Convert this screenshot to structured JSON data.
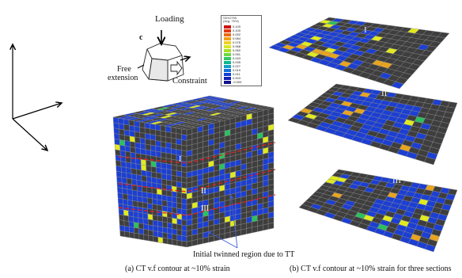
{
  "figure": {
    "diagram_labels": {
      "loading": "Loading",
      "c_axis": "c",
      "free_extension_line1": "Free",
      "free_extension_line2": "extension",
      "constraint": "Constraint"
    },
    "legend": {
      "title_line1": "SDV2759",
      "title_line2": "(Avg: 75%)",
      "values": [
        "0.109",
        "0.100",
        "0.092",
        "0.084",
        "0.076",
        "0.068",
        "0.060",
        "0.051",
        "0.043",
        "0.035",
        "0.027",
        "0.019",
        "0.011",
        "0.003",
        "-0.009"
      ],
      "colors": [
        "#d01010",
        "#e03a10",
        "#ea6a12",
        "#f0a018",
        "#f0d020",
        "#d8e820",
        "#a8e020",
        "#6cd840",
        "#30c860",
        "#10b890",
        "#10a0c8",
        "#1070e0",
        "#1040d8",
        "#1020b8",
        "#101090"
      ]
    },
    "section_labels": [
      "I",
      "II",
      "III"
    ],
    "annotation": "Initial twinned region due to TT",
    "caption_a": "(a) CT v.f contour at ~10% strain",
    "caption_b": "(b) CT v.f contour at ~10% strain for three sections",
    "colors": {
      "twin_blue": "#1c3fd2",
      "matrix_grey": "#3e3e3e",
      "twin_yellow": "#e0ea20",
      "twin_orange": "#e8a420",
      "mesh_line": "#8a8a8a",
      "section_line": "#e02020"
    }
  }
}
